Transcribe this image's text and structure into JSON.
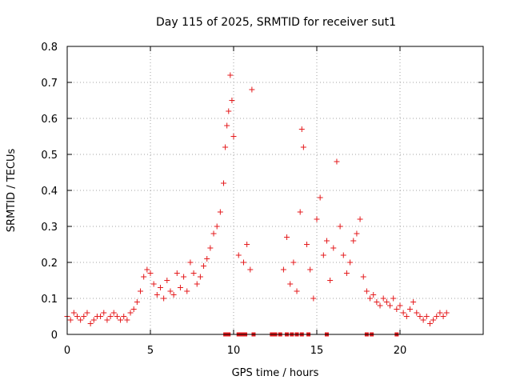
{
  "chart_data": {
    "type": "scatter",
    "title": "Day 115 of 2025, SRMTID for receiver sut1",
    "xlabel": "GPS time / hours",
    "ylabel": "SRMTID / TECUs",
    "xlim": [
      0,
      25
    ],
    "ylim": [
      0,
      0.8
    ],
    "grid": true,
    "marker": "+",
    "color": "#e41a1c",
    "x_ticks": [
      0,
      5,
      10,
      15,
      20
    ],
    "x_tick_labels": [
      "0",
      "5",
      "10",
      "15",
      "20"
    ],
    "y_ticks": [
      0,
      0.1,
      0.2,
      0.3,
      0.4,
      0.5,
      0.6,
      0.7,
      0.8
    ],
    "y_tick_labels": [
      "0",
      "0.1",
      "0.2",
      "0.3",
      "0.4",
      "0.5",
      "0.6",
      "0.7",
      "0.8"
    ],
    "series": [
      {
        "name": "SRMTID",
        "marker": "+",
        "x": [
          0.0,
          0.2,
          0.4,
          0.6,
          0.8,
          1.0,
          1.2,
          1.4,
          1.6,
          1.8,
          2.0,
          2.2,
          2.4,
          2.6,
          2.8,
          3.0,
          3.2,
          3.4,
          3.6,
          3.8,
          4.0,
          4.2,
          4.4,
          4.6,
          4.8,
          5.0,
          5.2,
          5.4,
          5.6,
          5.8,
          6.0,
          6.2,
          6.4,
          6.6,
          6.8,
          7.0,
          7.2,
          7.4,
          7.6,
          7.8,
          8.0,
          8.2,
          8.4,
          8.6,
          8.8,
          9.0,
          9.2,
          9.4,
          9.5,
          9.6,
          9.7,
          9.8,
          9.9,
          10.0,
          10.3,
          10.6,
          10.8,
          11.0,
          11.1,
          13.0,
          13.2,
          13.4,
          13.6,
          13.8,
          14.0,
          14.1,
          14.2,
          14.4,
          14.6,
          14.8,
          15.0,
          15.2,
          15.4,
          15.6,
          15.8,
          16.0,
          16.2,
          16.4,
          16.6,
          16.8,
          17.0,
          17.2,
          17.4,
          17.6,
          17.8,
          18.0,
          18.2,
          18.4,
          18.6,
          18.8,
          19.0,
          19.2,
          19.4,
          19.6,
          19.8,
          20.0,
          20.2,
          20.4,
          20.6,
          20.8,
          21.0,
          21.2,
          21.4,
          21.6,
          21.8,
          22.0,
          22.2,
          22.4,
          22.6,
          22.8
        ],
        "y": [
          0.05,
          0.04,
          0.06,
          0.05,
          0.04,
          0.05,
          0.06,
          0.03,
          0.04,
          0.05,
          0.05,
          0.06,
          0.04,
          0.05,
          0.06,
          0.05,
          0.04,
          0.05,
          0.04,
          0.06,
          0.07,
          0.09,
          0.12,
          0.16,
          0.18,
          0.17,
          0.14,
          0.11,
          0.13,
          0.1,
          0.15,
          0.12,
          0.11,
          0.17,
          0.13,
          0.16,
          0.12,
          0.2,
          0.17,
          0.14,
          0.16,
          0.19,
          0.21,
          0.24,
          0.28,
          0.3,
          0.34,
          0.42,
          0.52,
          0.58,
          0.62,
          0.72,
          0.65,
          0.55,
          0.22,
          0.2,
          0.25,
          0.18,
          0.68,
          0.18,
          0.27,
          0.14,
          0.2,
          0.12,
          0.34,
          0.57,
          0.52,
          0.25,
          0.18,
          0.1,
          0.32,
          0.38,
          0.22,
          0.26,
          0.15,
          0.24,
          0.48,
          0.3,
          0.22,
          0.17,
          0.2,
          0.26,
          0.28,
          0.32,
          0.16,
          0.12,
          0.1,
          0.11,
          0.09,
          0.08,
          0.1,
          0.09,
          0.08,
          0.1,
          0.07,
          0.08,
          0.06,
          0.05,
          0.07,
          0.09,
          0.06,
          0.05,
          0.04,
          0.05,
          0.03,
          0.04,
          0.05,
          0.06,
          0.05,
          0.06
        ]
      },
      {
        "name": "flags",
        "marker": "square",
        "x": [
          9.5,
          9.7,
          10.3,
          10.5,
          10.7,
          11.2,
          12.3,
          12.5,
          12.8,
          13.2,
          13.5,
          13.8,
          14.1,
          14.5,
          15.6,
          18.0,
          18.3,
          19.8
        ],
        "y": [
          0,
          0,
          0,
          0,
          0,
          0,
          0,
          0,
          0,
          0,
          0,
          0,
          0,
          0,
          0,
          0,
          0,
          0
        ]
      }
    ]
  }
}
